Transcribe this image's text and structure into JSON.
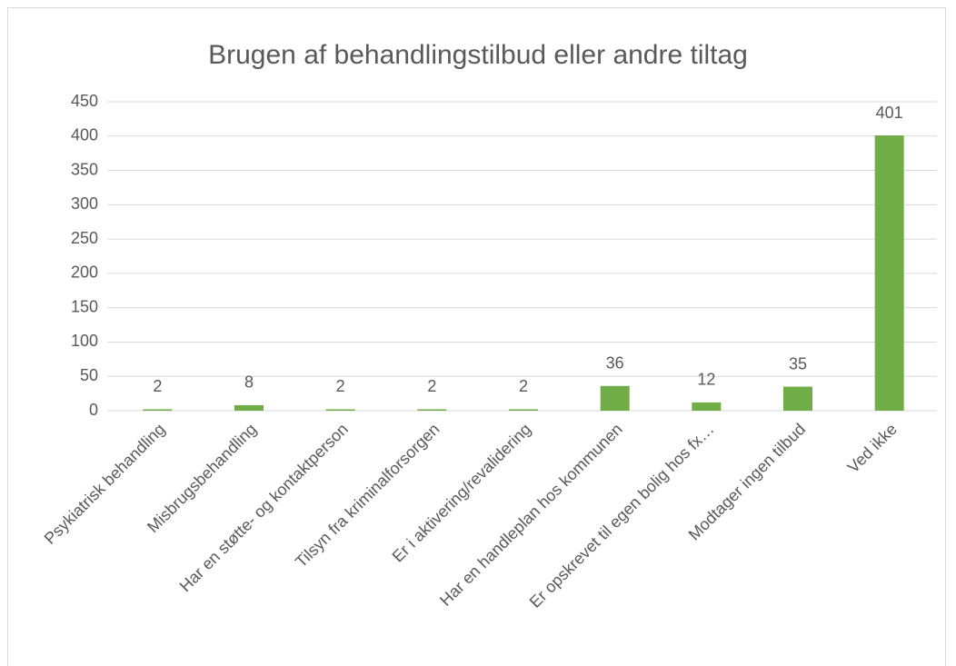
{
  "chart_data": {
    "type": "bar",
    "title": "Brugen af behandlingstilbud eller andre tiltag",
    "categories": [
      "Psykiatrisk behandling",
      "Misbrugsbehandling",
      "Har en støtte- og kontaktperson",
      "Tilsyn fra kriminalforsorgen",
      "Er i aktivering/revalidering",
      "Har en handleplan hos kommunen",
      "Er opskrevet til egen bolig hos fx…",
      "Modtager ingen tilbud",
      "Ved ikke"
    ],
    "values": [
      2,
      8,
      2,
      2,
      2,
      36,
      12,
      35,
      401
    ],
    "color": "#70ad47",
    "ylim": [
      0,
      450
    ],
    "yticks": [
      0,
      50,
      100,
      150,
      200,
      250,
      300,
      350,
      400,
      450
    ],
    "grid": true
  }
}
